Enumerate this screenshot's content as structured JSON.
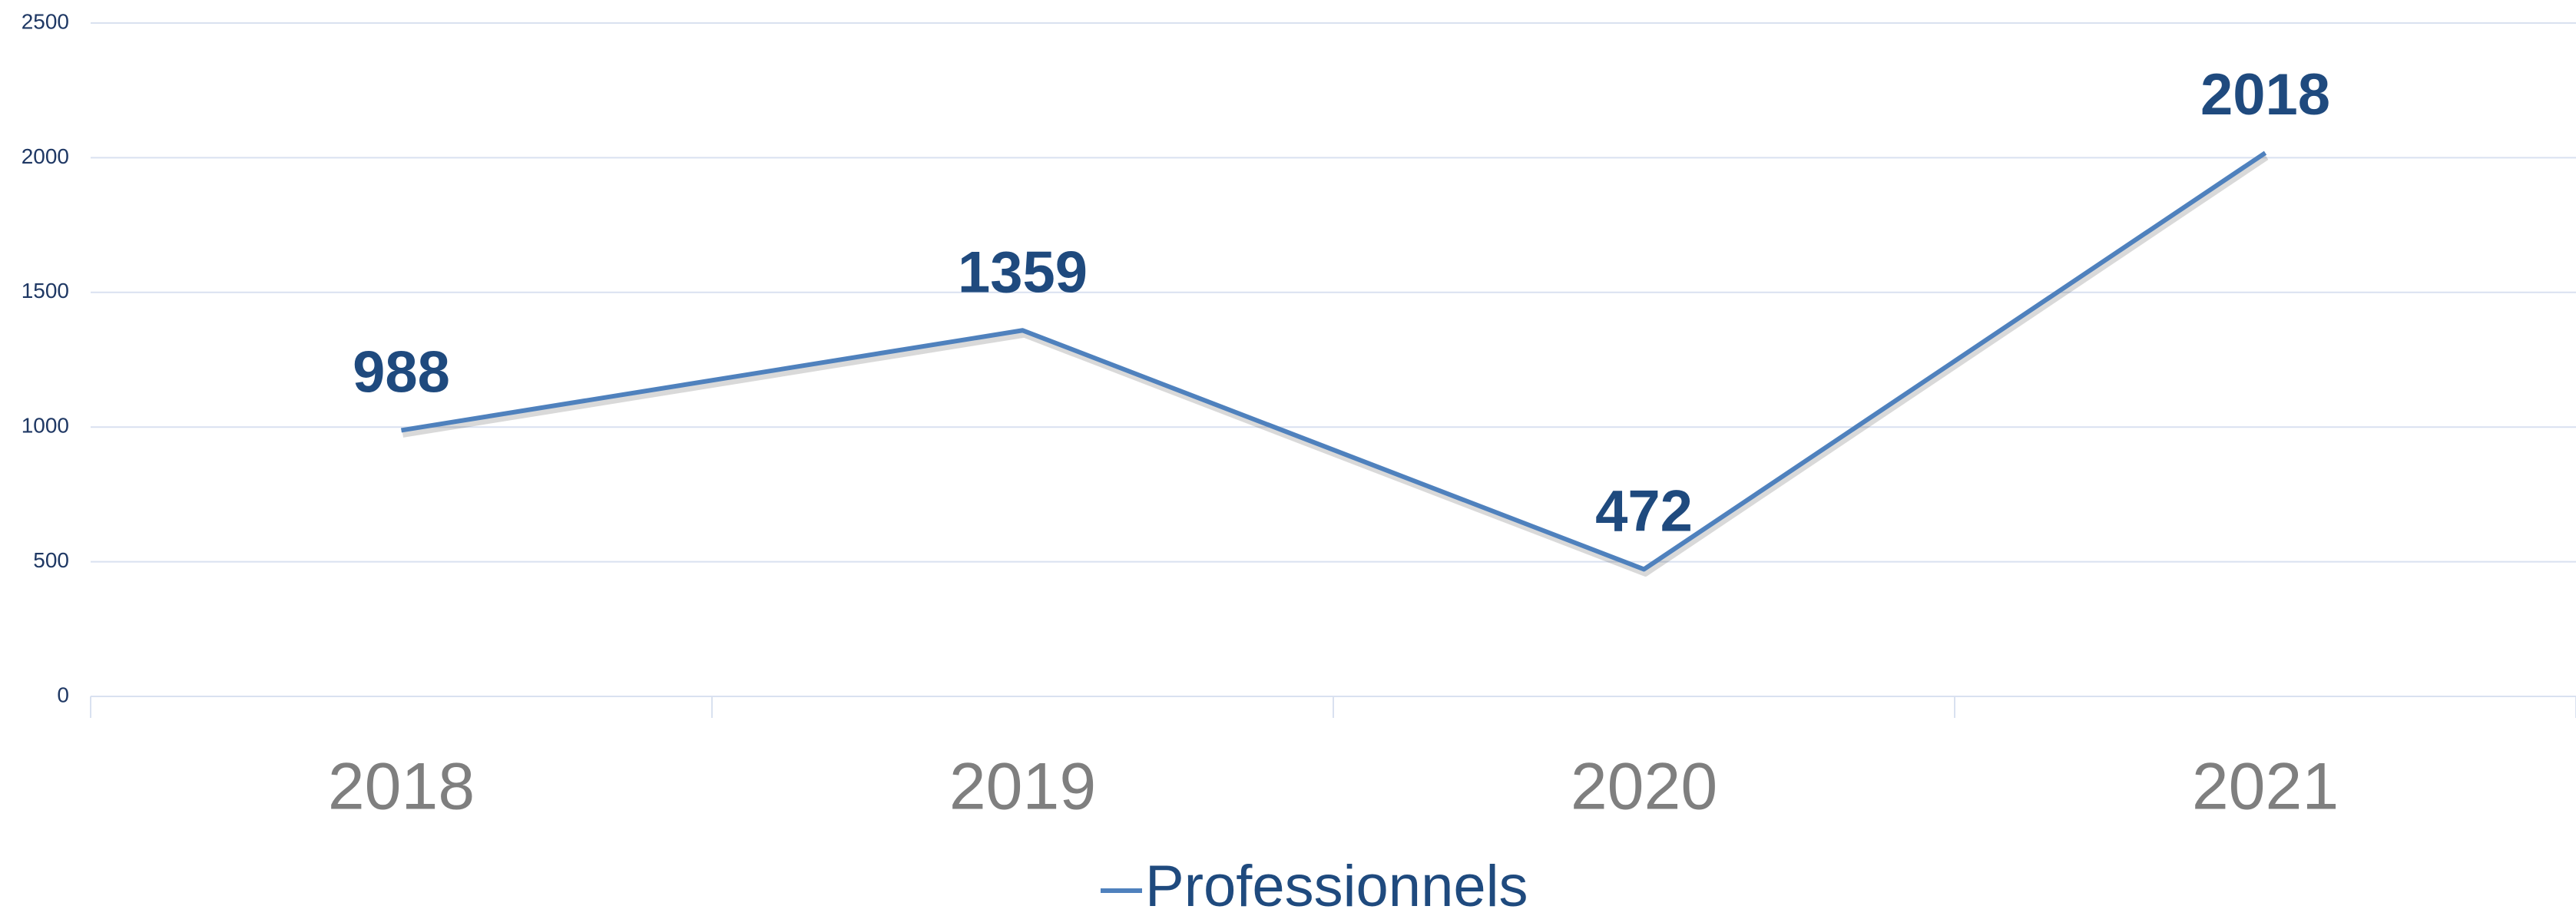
{
  "chart_data": {
    "type": "line",
    "categories": [
      "2018",
      "2019",
      "2020",
      "2021"
    ],
    "series": [
      {
        "name": "Professionnels",
        "color": "#4f81bd",
        "values": [
          988,
          1359,
          472,
          2018
        ]
      }
    ],
    "ylim": [
      0,
      2500
    ],
    "yticks": [
      0,
      500,
      1000,
      1500,
      2000,
      2500
    ],
    "grid": true,
    "legend": "bottom"
  }
}
